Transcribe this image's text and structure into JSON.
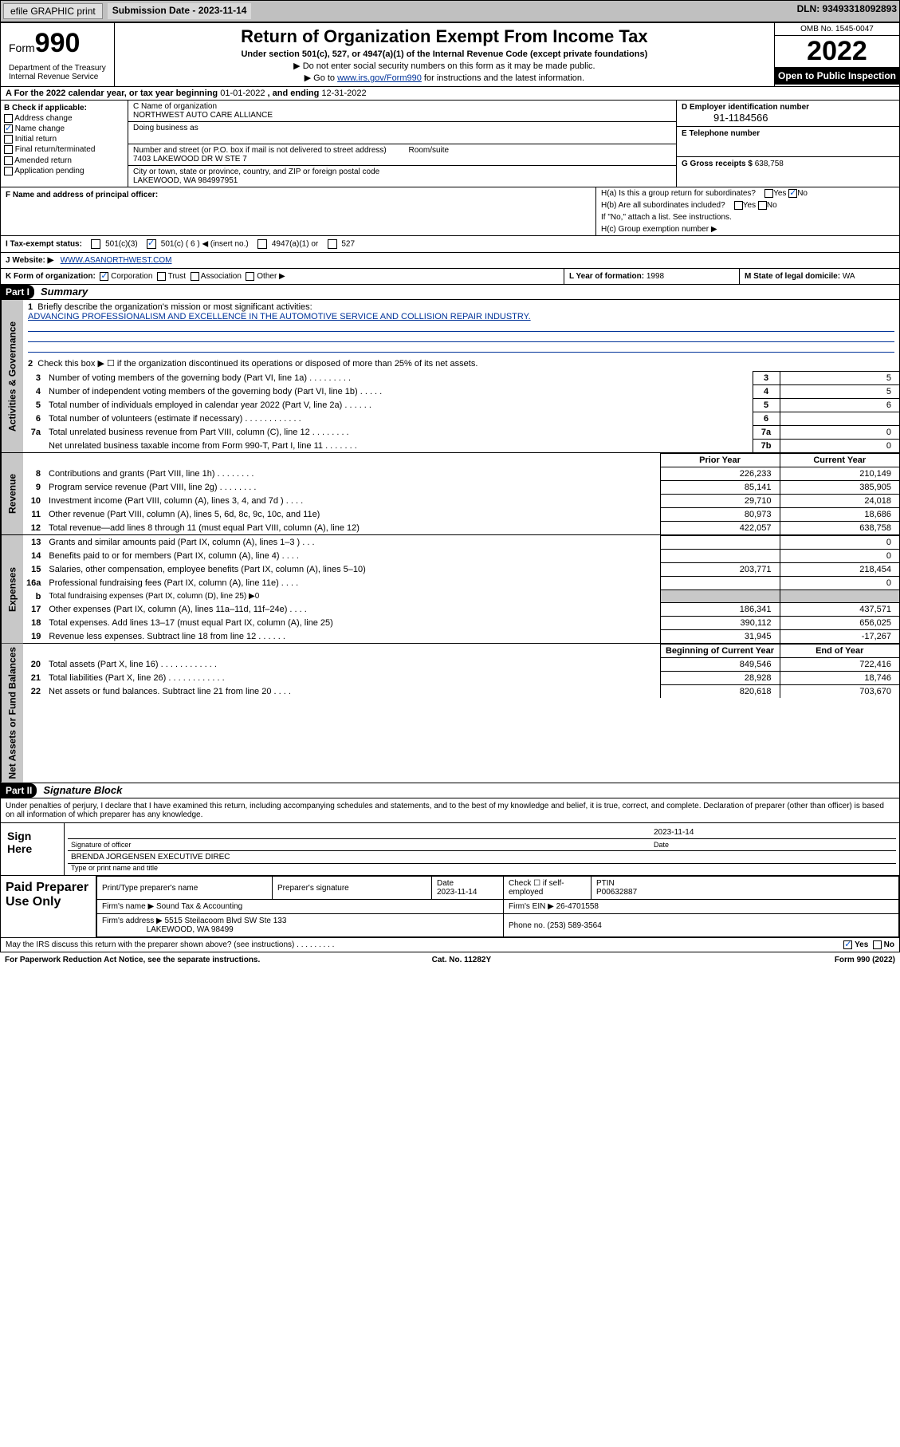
{
  "topbar": {
    "efile": "efile GRAPHIC print",
    "submission": "Submission Date - 2023-11-14",
    "dln": "DLN: 93493318092893"
  },
  "header": {
    "form_label": "Form",
    "form_no": "990",
    "dept": "Department of the Treasury\nInternal Revenue Service",
    "title": "Return of Organization Exempt From Income Tax",
    "sub1": "Under section 501(c), 527, or 4947(a)(1) of the Internal Revenue Code (except private foundations)",
    "sub2": "▶ Do not enter social security numbers on this form as it may be made public.",
    "sub3_pre": "▶ Go to ",
    "sub3_link": "www.irs.gov/Form990",
    "sub3_post": " for instructions and the latest information.",
    "omb": "OMB No. 1545-0047",
    "year": "2022",
    "otp": "Open to Public Inspection"
  },
  "lineA": {
    "pre": "A For the 2022 calendar year, or tax year beginning ",
    "d1": "01-01-2022",
    "mid": " , and ending ",
    "d2": "12-31-2022"
  },
  "colB": {
    "label": "B Check if applicable:",
    "items": [
      "Address change",
      "Name change",
      "Initial return",
      "Final return/terminated",
      "Amended return",
      "Application pending"
    ],
    "checked_idx": 1
  },
  "colC": {
    "name_lbl": "C Name of organization",
    "name": "NORTHWEST AUTO CARE ALLIANCE",
    "dba_lbl": "Doing business as",
    "street_lbl": "Number and street (or P.O. box if mail is not delivered to street address)",
    "room_lbl": "Room/suite",
    "street": "7403 LAKEWOOD DR W STE 7",
    "city_lbl": "City or town, state or province, country, and ZIP or foreign postal code",
    "city": "LAKEWOOD, WA  984997951"
  },
  "colD": {
    "ein_lbl": "D Employer identification number",
    "ein": "91-1184566",
    "tel_lbl": "E Telephone number",
    "gross_lbl": "G Gross receipts $",
    "gross": "638,758"
  },
  "rowF": {
    "f_lbl": "F Name and address of principal officer:",
    "ha": "H(a)  Is this a group return for subordinates?",
    "hb": "H(b)  Are all subordinates included?",
    "hb_note": "If \"No,\" attach a list. See instructions.",
    "hc": "H(c)  Group exemption number ▶"
  },
  "rowI": {
    "lbl": "I   Tax-exempt status:",
    "o1": "501(c)(3)",
    "o2": "501(c) ( 6 ) ◀ (insert no.)",
    "o3": "4947(a)(1) or",
    "o4": "527"
  },
  "rowJ": {
    "lbl": "J   Website: ▶",
    "val": "WWW.ASANORTHWEST.COM"
  },
  "rowK": {
    "k": "K Form of organization:",
    "k1": "Corporation",
    "k2": "Trust",
    "k3": "Association",
    "k4": "Other ▶",
    "l_lbl": "L Year of formation:",
    "l_val": "1998",
    "m_lbl": "M State of legal domicile:",
    "m_val": "WA"
  },
  "parts": {
    "p1": "Part I",
    "p1t": "Summary",
    "p2": "Part II",
    "p2t": "Signature Block"
  },
  "p1q1": {
    "num": "1",
    "q": "Briefly describe the organization's mission or most significant activities:",
    "ans": "ADVANCING PROFESSIONALISM AND EXCELLENCE IN THE AUTOMOTIVE SERVICE AND COLLISION REPAIR INDUSTRY."
  },
  "p1q2": {
    "num": "2",
    "q": "Check this box ▶ ☐  if the organization discontinued its operations or disposed of more than 25% of its net assets."
  },
  "vtabs": {
    "ag": "Activities & Governance",
    "rev": "Revenue",
    "exp": "Expenses",
    "net": "Net Assets or Fund Balances"
  },
  "gov_rows": [
    {
      "n": "3",
      "t": "Number of voting members of the governing body (Part VI, line 1a)   .     .     .     .     .     .     .     .     .",
      "b": "3",
      "v": "5"
    },
    {
      "n": "4",
      "t": "Number of independent voting members of the governing body (Part VI, line 1b)    .     .     .     .     .",
      "b": "4",
      "v": "5"
    },
    {
      "n": "5",
      "t": "Total number of individuals employed in calendar year 2022 (Part V, line 2a)    .     .     .     .     .     .",
      "b": "5",
      "v": "6"
    },
    {
      "n": "6",
      "t": "Total number of volunteers (estimate if necessary)    .     .     .     .     .     .     .     .     .     .     .     .",
      "b": "6",
      "v": ""
    },
    {
      "n": "7a",
      "t": "Total unrelated business revenue from Part VIII, column (C), line 12    .     .     .     .     .     .     .     .",
      "b": "7a",
      "v": "0"
    },
    {
      "n": "",
      "t": "Net unrelated business taxable income from Form 990-T, Part I, line 11    .     .     .     .     .     .     .",
      "b": "7b",
      "v": "0"
    }
  ],
  "rev_hdr": {
    "p": "Prior Year",
    "c": "Current Year"
  },
  "rev_rows": [
    {
      "n": "8",
      "t": "Contributions and grants (Part VIII, line 1h)    .     .     .     .     .     .     .     .",
      "p": "226,233",
      "c": "210,149"
    },
    {
      "n": "9",
      "t": "Program service revenue (Part VIII, line 2g)    .     .     .     .     .     .     .     .",
      "p": "85,141",
      "c": "385,905"
    },
    {
      "n": "10",
      "t": "Investment income (Part VIII, column (A), lines 3, 4, and 7d )    .     .     .     .",
      "p": "29,710",
      "c": "24,018"
    },
    {
      "n": "11",
      "t": "Other revenue (Part VIII, column (A), lines 5, 6d, 8c, 9c, 10c, and 11e)",
      "p": "80,973",
      "c": "18,686"
    },
    {
      "n": "12",
      "t": "Total revenue—add lines 8 through 11 (must equal Part VIII, column (A), line 12)",
      "p": "422,057",
      "c": "638,758"
    }
  ],
  "exp_rows": [
    {
      "n": "13",
      "t": "Grants and similar amounts paid (Part IX, column (A), lines 1–3 )    .     .     .",
      "p": "",
      "c": "0"
    },
    {
      "n": "14",
      "t": "Benefits paid to or for members (Part IX, column (A), line 4)    .     .     .     .",
      "p": "",
      "c": "0"
    },
    {
      "n": "15",
      "t": "Salaries, other compensation, employee benefits (Part IX, column (A), lines 5–10)",
      "p": "203,771",
      "c": "218,454"
    },
    {
      "n": "16a",
      "t": "Professional fundraising fees (Part IX, column (A), line 11e)    .     .     .     .",
      "p": "",
      "c": "0"
    },
    {
      "n": "b",
      "t": "Total fundraising expenses (Part IX, column (D), line 25) ▶0",
      "p": "",
      "c": "",
      "shade": true
    },
    {
      "n": "17",
      "t": "Other expenses (Part IX, column (A), lines 11a–11d, 11f–24e)    .     .     .     .",
      "p": "186,341",
      "c": "437,571"
    },
    {
      "n": "18",
      "t": "Total expenses. Add lines 13–17 (must equal Part IX, column (A), line 25)",
      "p": "390,112",
      "c": "656,025"
    },
    {
      "n": "19",
      "t": "Revenue less expenses. Subtract line 18 from line 12   .     .     .     .     .     .",
      "p": "31,945",
      "c": "-17,267"
    }
  ],
  "net_hdr": {
    "p": "Beginning of Current Year",
    "c": "End of Year"
  },
  "net_rows": [
    {
      "n": "20",
      "t": "Total assets (Part X, line 16)    .     .     .     .     .     .     .     .     .     .     .     .",
      "p": "849,546",
      "c": "722,416"
    },
    {
      "n": "21",
      "t": "Total liabilities (Part X, line 26)    .     .     .     .     .     .     .     .     .     .     .     .",
      "p": "28,928",
      "c": "18,746"
    },
    {
      "n": "22",
      "t": "Net assets or fund balances. Subtract line 21 from line 20    .     .     .     .",
      "p": "820,618",
      "c": "703,670"
    }
  ],
  "sig": {
    "dec": "Under penalties of perjury, I declare that I have examined this return, including accompanying schedules and statements, and to the best of my knowledge and belief, it is true, correct, and complete. Declaration of preparer (other than officer) is based on all information of which preparer has any knowledge.",
    "sign_here": "Sign Here",
    "soff": "Signature of officer",
    "sdate": "2023-11-14",
    "date_lbl": "Date",
    "name": "BRENDA JORGENSEN  EXECUTIVE DIREC",
    "name_lbl": "Type or print name and title"
  },
  "paid": {
    "title": "Paid Preparer Use Only",
    "h1": "Print/Type preparer's name",
    "h2": "Preparer's signature",
    "h3": "Date",
    "h4": "Check ☐ if self-employed",
    "h5": "PTIN",
    "d": "2023-11-14",
    "ptin": "P00632887",
    "firm_lbl": "Firm's name    ▶",
    "firm": "Sound Tax & Accounting",
    "ein_lbl": "Firm's EIN ▶",
    "ein": "26-4701558",
    "addr_lbl": "Firm's address ▶",
    "addr1": "5515 Steilacoom Blvd SW Ste 133",
    "addr2": "LAKEWOOD, WA  98499",
    "ph_lbl": "Phone no.",
    "ph": "(253) 589-3564"
  },
  "bottom": {
    "q": "May the IRS discuss this return with the preparer shown above? (see instructions)    .     .     .     .     .     .     .     .     .",
    "yes": "Yes",
    "no": "No"
  },
  "footer": {
    "l": "For Paperwork Reduction Act Notice, see the separate instructions.",
    "m": "Cat. No. 11282Y",
    "r": "Form 990 (2022)"
  }
}
